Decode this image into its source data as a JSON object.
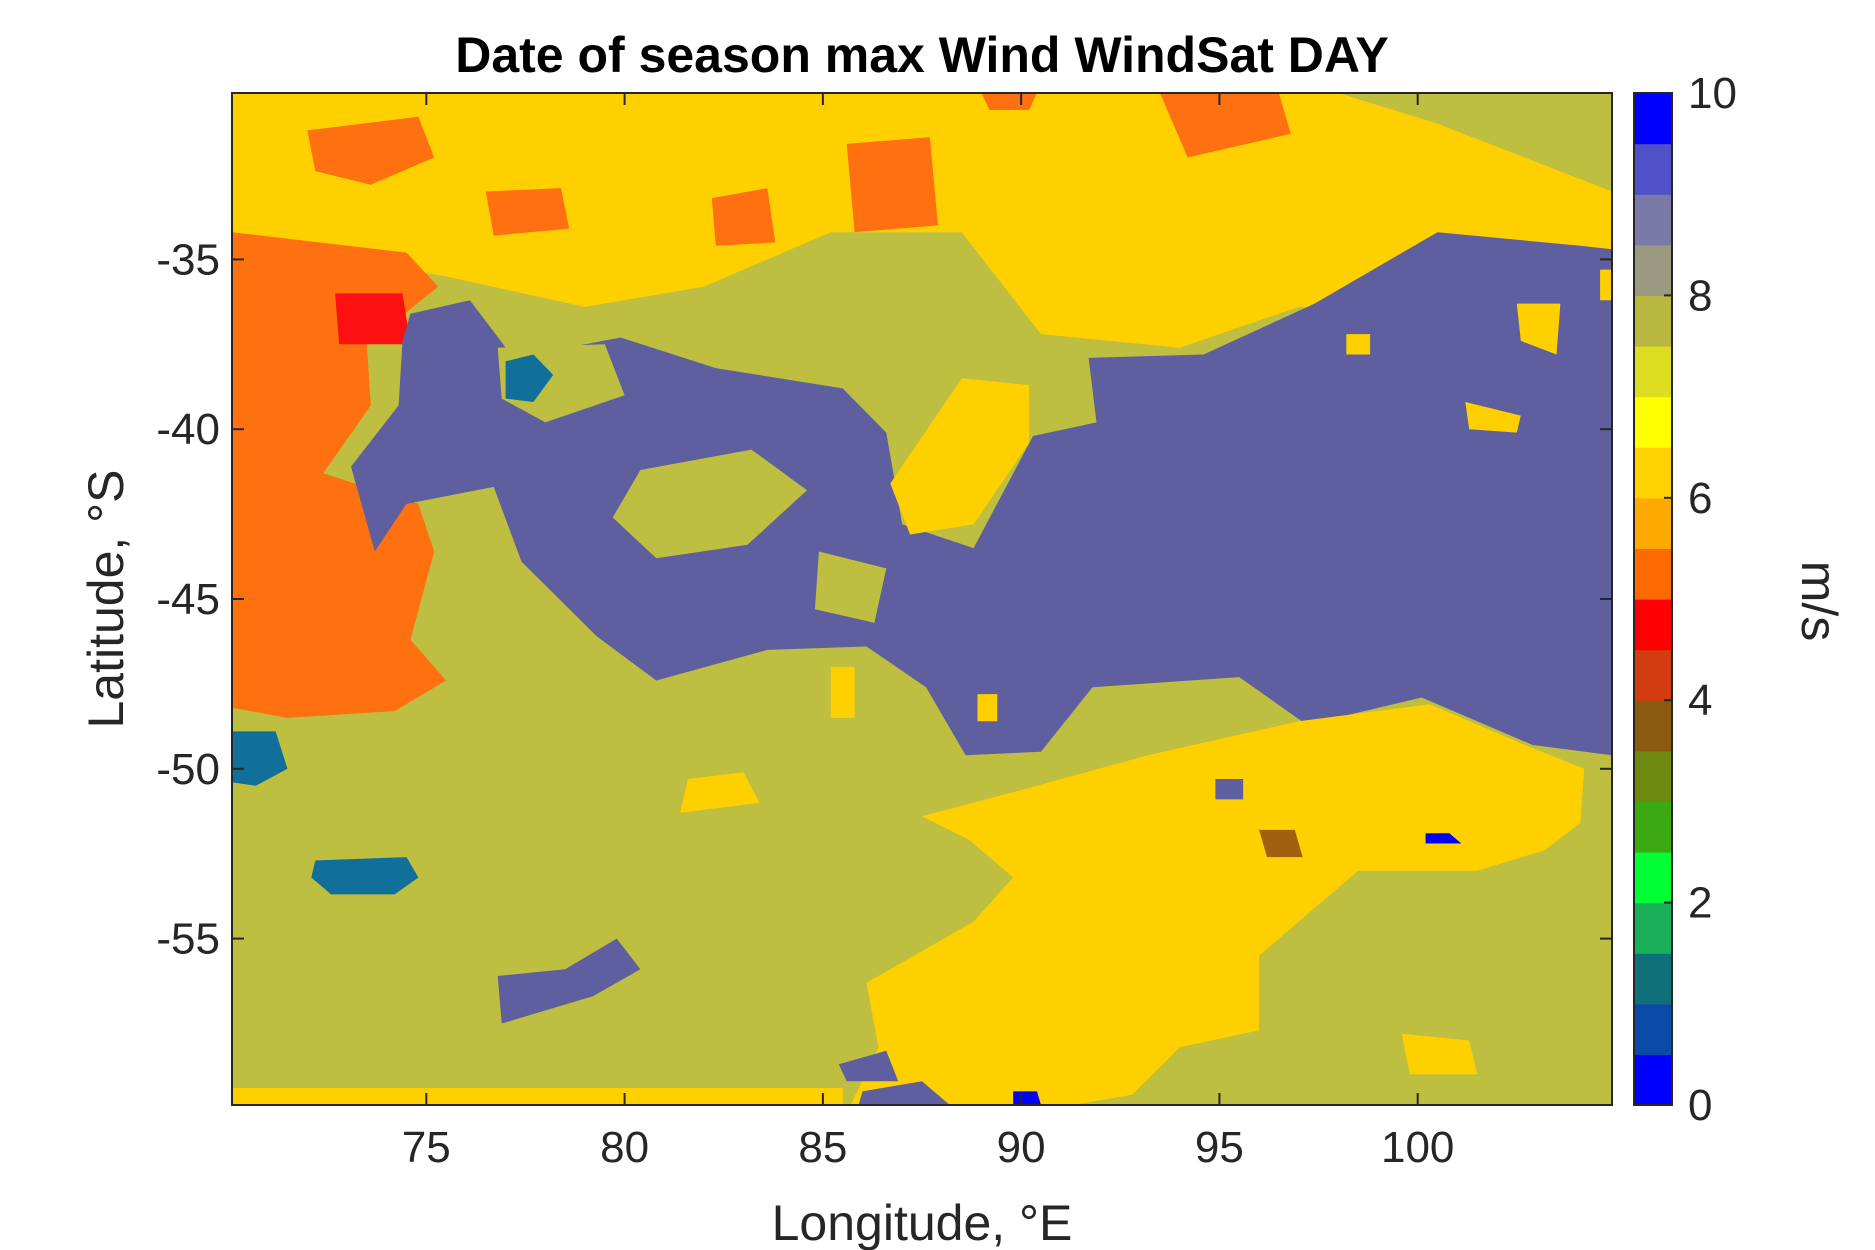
{
  "chart_data": {
    "type": "heatmap",
    "title": "Date of season max Wind WindSat DAY",
    "xlabel": "Longitude, °E",
    "ylabel": "Latitude, °S",
    "xlim": [
      70.1,
      104.9
    ],
    "ylim": [
      -59.9,
      -30.1
    ],
    "xticks": [
      {
        "value": 75,
        "label": "75"
      },
      {
        "value": 80,
        "label": "80"
      },
      {
        "value": 85,
        "label": "85"
      },
      {
        "value": 90,
        "label": "90"
      },
      {
        "value": 95,
        "label": "95"
      },
      {
        "value": 100,
        "label": "100"
      }
    ],
    "yticks": [
      {
        "value": -35,
        "label": "-35"
      },
      {
        "value": -40,
        "label": "-40"
      },
      {
        "value": -45,
        "label": "-45"
      },
      {
        "value": -50,
        "label": "-50"
      },
      {
        "value": -55,
        "label": "-55"
      }
    ],
    "colorbar": {
      "label": "m/s",
      "range": [
        0,
        10
      ],
      "ticks": [
        {
          "value": 0,
          "label": "0"
        },
        {
          "value": 2,
          "label": "2"
        },
        {
          "value": 4,
          "label": "4"
        },
        {
          "value": 6,
          "label": "6"
        },
        {
          "value": 8,
          "label": "8"
        },
        {
          "value": 10,
          "label": "10"
        }
      ],
      "colormap": [
        "#0000ff",
        "#0a4aa8",
        "#10707a",
        "#1ab05a",
        "#00ff33",
        "#3aaa10",
        "#6e8a10",
        "#8a5a10",
        "#d23c10",
        "#ff0000",
        "#ff6a00",
        "#ffaa00",
        "#ffd200",
        "#ffff00",
        "#dddd22",
        "#b8b840",
        "#9a9a80",
        "#7a7aa8",
        "#5050c8",
        "#0000ff"
      ]
    },
    "field_colors": {
      "slate": "#5f5f9f",
      "olive": "#bebe40",
      "gold": "#ffd000",
      "orange": "#ff7010",
      "red": "#ff1010",
      "teal": "#10709a",
      "brown": "#a06010",
      "blue": "#0000ff"
    },
    "regions": [
      {
        "value": 8.2,
        "color": "olive",
        "points": [
          [
            70.1,
            -30.1
          ],
          [
            104.9,
            -30.1
          ],
          [
            104.9,
            -59.9
          ],
          [
            70.1,
            -59.9
          ]
        ]
      },
      {
        "value": 7.0,
        "color": "gold",
        "points": [
          [
            70.1,
            -30.1
          ],
          [
            98,
            -30.1
          ],
          [
            100.5,
            -31
          ],
          [
            104.9,
            -33
          ],
          [
            104.9,
            -36
          ],
          [
            101,
            -36.8
          ],
          [
            97,
            -36.4
          ],
          [
            94,
            -37.6
          ],
          [
            90.5,
            -37.2
          ],
          [
            88.5,
            -34.2
          ],
          [
            85.2,
            -34.2
          ],
          [
            82,
            -35.8
          ],
          [
            79,
            -36.4
          ],
          [
            75.5,
            -35.5
          ],
          [
            73,
            -35
          ],
          [
            70.1,
            -34.5
          ]
        ]
      },
      {
        "value": 6.0,
        "color": "orange",
        "points": [
          [
            70.1,
            -34.2
          ],
          [
            74.5,
            -34.8
          ],
          [
            75.3,
            -35.8
          ],
          [
            73.5,
            -37.5
          ],
          [
            73.6,
            -39.3
          ],
          [
            72.4,
            -41.3
          ],
          [
            74.8,
            -42.2
          ],
          [
            75.2,
            -43.6
          ],
          [
            74.6,
            -46.2
          ],
          [
            75.5,
            -47.4
          ],
          [
            74.2,
            -48.3
          ],
          [
            71.5,
            -48.5
          ],
          [
            70.1,
            -48.2
          ]
        ]
      },
      {
        "value": 6.0,
        "color": "orange",
        "points": [
          [
            72,
            -31.2
          ],
          [
            74.8,
            -30.8
          ],
          [
            75.2,
            -32
          ],
          [
            73.6,
            -32.8
          ],
          [
            72.2,
            -32.4
          ]
        ]
      },
      {
        "value": 6.0,
        "color": "orange",
        "points": [
          [
            76.5,
            -33
          ],
          [
            78.4,
            -32.9
          ],
          [
            78.6,
            -34.1
          ],
          [
            76.7,
            -34.3
          ]
        ]
      },
      {
        "value": 6.0,
        "color": "orange",
        "points": [
          [
            82.2,
            -33.2
          ],
          [
            83.6,
            -32.9
          ],
          [
            83.8,
            -34.5
          ],
          [
            82.3,
            -34.6
          ]
        ]
      },
      {
        "value": 6.0,
        "color": "orange",
        "points": [
          [
            85.6,
            -31.6
          ],
          [
            87.7,
            -31.4
          ],
          [
            87.9,
            -34
          ],
          [
            85.8,
            -34.2
          ]
        ]
      },
      {
        "value": 6.0,
        "color": "orange",
        "points": [
          [
            93.5,
            -30.1
          ],
          [
            96.5,
            -30.1
          ],
          [
            96.8,
            -31.3
          ],
          [
            94.2,
            -32
          ]
        ]
      },
      {
        "value": 6.0,
        "color": "orange",
        "points": [
          [
            89,
            -30.1
          ],
          [
            90.4,
            -30.1
          ],
          [
            90.2,
            -30.6
          ],
          [
            89.2,
            -30.6
          ]
        ]
      },
      {
        "value": 5.0,
        "color": "red",
        "points": [
          [
            72.7,
            -36
          ],
          [
            74.4,
            -36
          ],
          [
            74.6,
            -37.5
          ],
          [
            72.8,
            -37.5
          ]
        ]
      },
      {
        "value": 9.1,
        "color": "slate",
        "points": [
          [
            74.6,
            -36.6
          ],
          [
            76.1,
            -36.2
          ],
          [
            77.2,
            -37.9
          ],
          [
            79.9,
            -37.3
          ],
          [
            82.3,
            -38.2
          ],
          [
            85.5,
            -38.8
          ],
          [
            86.6,
            -40.1
          ],
          [
            87,
            -42.8
          ],
          [
            88.8,
            -43.5
          ],
          [
            90.3,
            -40.2
          ],
          [
            91.9,
            -39.8
          ],
          [
            91.7,
            -37.9
          ],
          [
            94.6,
            -37.8
          ],
          [
            97.4,
            -36.3
          ],
          [
            100.5,
            -34.2
          ],
          [
            104.1,
            -34.6
          ],
          [
            104.9,
            -34.7
          ],
          [
            104.9,
            -49.6
          ],
          [
            102.9,
            -49.3
          ],
          [
            100.1,
            -47.9
          ],
          [
            97.2,
            -48.7
          ],
          [
            95.5,
            -47.3
          ],
          [
            91.8,
            -47.6
          ],
          [
            90.5,
            -49.5
          ],
          [
            88.6,
            -49.6
          ],
          [
            87.6,
            -47.6
          ],
          [
            86.1,
            -46.4
          ],
          [
            83.6,
            -46.5
          ],
          [
            80.8,
            -47.4
          ],
          [
            79.3,
            -46.1
          ],
          [
            77.4,
            -43.9
          ],
          [
            76.7,
            -41.7
          ],
          [
            74.5,
            -42.2
          ],
          [
            73.7,
            -43.6
          ],
          [
            73.1,
            -41.1
          ],
          [
            74.3,
            -39.3
          ],
          [
            74.4,
            -37.4
          ]
        ]
      },
      {
        "value": 8.2,
        "color": "olive",
        "points": [
          [
            76.8,
            -37.6
          ],
          [
            79.5,
            -37.5
          ],
          [
            80,
            -39
          ],
          [
            78,
            -39.8
          ],
          [
            76.9,
            -39.1
          ]
        ]
      },
      {
        "value": 8.2,
        "color": "olive",
        "points": [
          [
            80.4,
            -41.2
          ],
          [
            83.2,
            -40.6
          ],
          [
            84.6,
            -41.8
          ],
          [
            83.1,
            -43.4
          ],
          [
            80.8,
            -43.8
          ],
          [
            79.7,
            -42.6
          ]
        ]
      },
      {
        "value": 8.2,
        "color": "olive",
        "points": [
          [
            84.9,
            -43.6
          ],
          [
            86.6,
            -44.1
          ],
          [
            86.3,
            -45.7
          ],
          [
            84.8,
            -45.3
          ]
        ]
      },
      {
        "value": 7.0,
        "color": "gold",
        "points": [
          [
            88.5,
            -38.5
          ],
          [
            90.2,
            -38.7
          ],
          [
            90.2,
            -40.4
          ],
          [
            88.8,
            -42.8
          ],
          [
            87.2,
            -43.1
          ],
          [
            86.7,
            -41.6
          ]
        ]
      },
      {
        "value": 7.0,
        "color": "gold",
        "points": [
          [
            104.6,
            -35.3
          ],
          [
            104.9,
            -35.3
          ],
          [
            104.9,
            -36.2
          ],
          [
            104.6,
            -36.2
          ]
        ]
      },
      {
        "value": 7.0,
        "color": "gold",
        "points": [
          [
            102.5,
            -36.3
          ],
          [
            103.6,
            -36.3
          ],
          [
            103.5,
            -37.8
          ],
          [
            102.6,
            -37.4
          ]
        ]
      },
      {
        "value": 7.0,
        "color": "gold",
        "points": [
          [
            98.2,
            -37.2
          ],
          [
            98.8,
            -37.2
          ],
          [
            98.8,
            -37.8
          ],
          [
            98.2,
            -37.8
          ]
        ]
      },
      {
        "value": 7.0,
        "color": "gold",
        "points": [
          [
            101.2,
            -39.2
          ],
          [
            102.6,
            -39.6
          ],
          [
            102.5,
            -40.1
          ],
          [
            101.3,
            -40
          ]
        ]
      },
      {
        "value": 7.0,
        "color": "gold",
        "points": [
          [
            88.9,
            -47.8
          ],
          [
            89.4,
            -47.8
          ],
          [
            89.4,
            -48.6
          ],
          [
            88.9,
            -48.6
          ]
        ]
      },
      {
        "value": 7.0,
        "color": "gold",
        "points": [
          [
            85.2,
            -47
          ],
          [
            85.8,
            -47
          ],
          [
            85.8,
            -48.5
          ],
          [
            85.2,
            -48.5
          ]
        ]
      },
      {
        "value": 7.0,
        "color": "gold",
        "points": [
          [
            81.6,
            -50.3
          ],
          [
            83,
            -50.1
          ],
          [
            83.4,
            -51
          ],
          [
            81.4,
            -51.3
          ]
        ]
      },
      {
        "value": 7.0,
        "color": "gold",
        "points": [
          [
            87.5,
            -51.4
          ],
          [
            90.4,
            -50.5
          ],
          [
            93.2,
            -49.6
          ],
          [
            97,
            -48.6
          ],
          [
            100.3,
            -48.1
          ],
          [
            102.7,
            -49.3
          ],
          [
            104.2,
            -50
          ],
          [
            104.1,
            -51.6
          ],
          [
            103.2,
            -52.4
          ],
          [
            101.5,
            -53
          ],
          [
            98.5,
            -53
          ],
          [
            96,
            -55.5
          ],
          [
            96,
            -57.7
          ],
          [
            94,
            -58.2
          ],
          [
            92.8,
            -59.6
          ],
          [
            91.3,
            -59.9
          ],
          [
            85.7,
            -59.9
          ],
          [
            86.4,
            -58.2
          ],
          [
            86.1,
            -56.3
          ],
          [
            87.3,
            -55.5
          ],
          [
            88.8,
            -54.5
          ],
          [
            89.8,
            -53.2
          ],
          [
            88.7,
            -52.1
          ]
        ]
      },
      {
        "value": 7.0,
        "color": "gold",
        "points": [
          [
            99.6,
            -57.8
          ],
          [
            101.3,
            -58
          ],
          [
            101.5,
            -59
          ],
          [
            99.8,
            -59
          ]
        ]
      },
      {
        "value": 7.0,
        "color": "gold",
        "points": [
          [
            70.1,
            -59.4
          ],
          [
            85.5,
            -59.4
          ],
          [
            85.5,
            -59.9
          ],
          [
            70.1,
            -59.9
          ]
        ]
      },
      {
        "value": 9.1,
        "color": "slate",
        "points": [
          [
            76.8,
            -56.1
          ],
          [
            78.5,
            -55.9
          ],
          [
            79.8,
            -55
          ],
          [
            80.4,
            -55.9
          ],
          [
            79.2,
            -56.7
          ],
          [
            76.9,
            -57.5
          ]
        ]
      },
      {
        "value": 9.1,
        "color": "slate",
        "points": [
          [
            85.4,
            -58.7
          ],
          [
            86.6,
            -58.3
          ],
          [
            86.9,
            -59.2
          ],
          [
            85.6,
            -59.2
          ]
        ]
      },
      {
        "value": 9.1,
        "color": "slate",
        "points": [
          [
            86,
            -59.5
          ],
          [
            87.5,
            -59.2
          ],
          [
            88.2,
            -59.9
          ],
          [
            85.9,
            -59.9
          ]
        ]
      },
      {
        "value": 9.1,
        "color": "slate",
        "points": [
          [
            94.9,
            -50.3
          ],
          [
            95.6,
            -50.3
          ],
          [
            95.6,
            -50.9
          ],
          [
            94.9,
            -50.9
          ]
        ]
      },
      {
        "value": 1.2,
        "color": "teal",
        "points": [
          [
            77,
            -38
          ],
          [
            77.7,
            -37.8
          ],
          [
            78.2,
            -38.4
          ],
          [
            77.7,
            -39.2
          ],
          [
            77,
            -39.1
          ]
        ]
      },
      {
        "value": 1.2,
        "color": "teal",
        "points": [
          [
            70.1,
            -48.9
          ],
          [
            71.2,
            -48.9
          ],
          [
            71.5,
            -50
          ],
          [
            70.7,
            -50.5
          ],
          [
            70.1,
            -50.4
          ]
        ]
      },
      {
        "value": 1.2,
        "color": "teal",
        "points": [
          [
            72.2,
            -52.7
          ],
          [
            74.5,
            -52.6
          ],
          [
            74.8,
            -53.2
          ],
          [
            74.2,
            -53.7
          ],
          [
            72.6,
            -53.7
          ],
          [
            72.1,
            -53.2
          ]
        ]
      },
      {
        "value": 4.2,
        "color": "brown",
        "points": [
          [
            96,
            -51.8
          ],
          [
            96.9,
            -51.8
          ],
          [
            97.1,
            -52.6
          ],
          [
            96.2,
            -52.6
          ]
        ]
      },
      {
        "value": 0.3,
        "color": "blue",
        "points": [
          [
            100.2,
            -51.9
          ],
          [
            100.8,
            -51.9
          ],
          [
            101.1,
            -52.2
          ],
          [
            100.2,
            -52.2
          ]
        ]
      },
      {
        "value": 0.3,
        "color": "blue",
        "points": [
          [
            89.8,
            -59.5
          ],
          [
            90.4,
            -59.5
          ],
          [
            90.5,
            -59.9
          ],
          [
            89.8,
            -59.9
          ]
        ]
      }
    ]
  }
}
